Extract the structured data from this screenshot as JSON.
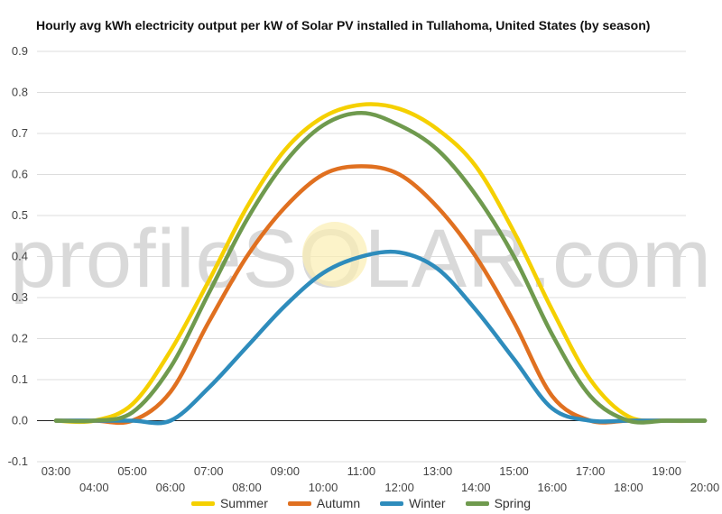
{
  "chart_data": {
    "type": "line",
    "title": "Hourly avg kWh electricity output per kW of Solar PV installed in Tullahoma, United States (by season)",
    "watermark": "profileSOLAR.com",
    "x_tick_labels_upper": [
      "03:00",
      "05:00",
      "07:00",
      "09:00",
      "11:00",
      "13:00",
      "15:00",
      "17:00",
      "19:00"
    ],
    "x_tick_labels_lower": [
      "04:00",
      "06:00",
      "08:00",
      "10:00",
      "12:00",
      "14:00",
      "16:00",
      "18:00",
      "20:00"
    ],
    "y_ticks": [
      "0.9",
      "0.8",
      "0.7",
      "0.6",
      "0.5",
      "0.4",
      "0.3",
      "0.2",
      "0.1",
      "0.0",
      "-0.1"
    ],
    "ylim": [
      -0.1,
      0.9
    ],
    "xlim": [
      3,
      20
    ],
    "grid": true,
    "legend_position": "bottom",
    "x": [
      3,
      4,
      5,
      6,
      7,
      8,
      9,
      10,
      11,
      12,
      13,
      14,
      15,
      16,
      17,
      18,
      19,
      20
    ],
    "series": [
      {
        "name": "Summer",
        "color": "#F5D000",
        "values": [
          0.0,
          0.0,
          0.04,
          0.17,
          0.34,
          0.52,
          0.66,
          0.74,
          0.77,
          0.76,
          0.71,
          0.62,
          0.46,
          0.27,
          0.1,
          0.01,
          0.0,
          0.0
        ]
      },
      {
        "name": "Autumn",
        "color": "#E07020",
        "values": [
          0.0,
          0.0,
          0.0,
          0.07,
          0.24,
          0.4,
          0.52,
          0.6,
          0.62,
          0.6,
          0.52,
          0.4,
          0.24,
          0.06,
          0.0,
          0.0,
          0.0,
          0.0
        ]
      },
      {
        "name": "Winter",
        "color": "#2E8CBC",
        "values": [
          0.0,
          0.0,
          0.0,
          0.0,
          0.08,
          0.18,
          0.28,
          0.36,
          0.4,
          0.41,
          0.37,
          0.27,
          0.15,
          0.03,
          0.0,
          0.0,
          0.0,
          0.0
        ]
      },
      {
        "name": "Spring",
        "color": "#6F9A4E",
        "values": [
          0.0,
          0.0,
          0.02,
          0.13,
          0.31,
          0.49,
          0.63,
          0.72,
          0.75,
          0.72,
          0.66,
          0.55,
          0.4,
          0.21,
          0.06,
          0.0,
          0.0,
          0.0
        ]
      }
    ]
  }
}
